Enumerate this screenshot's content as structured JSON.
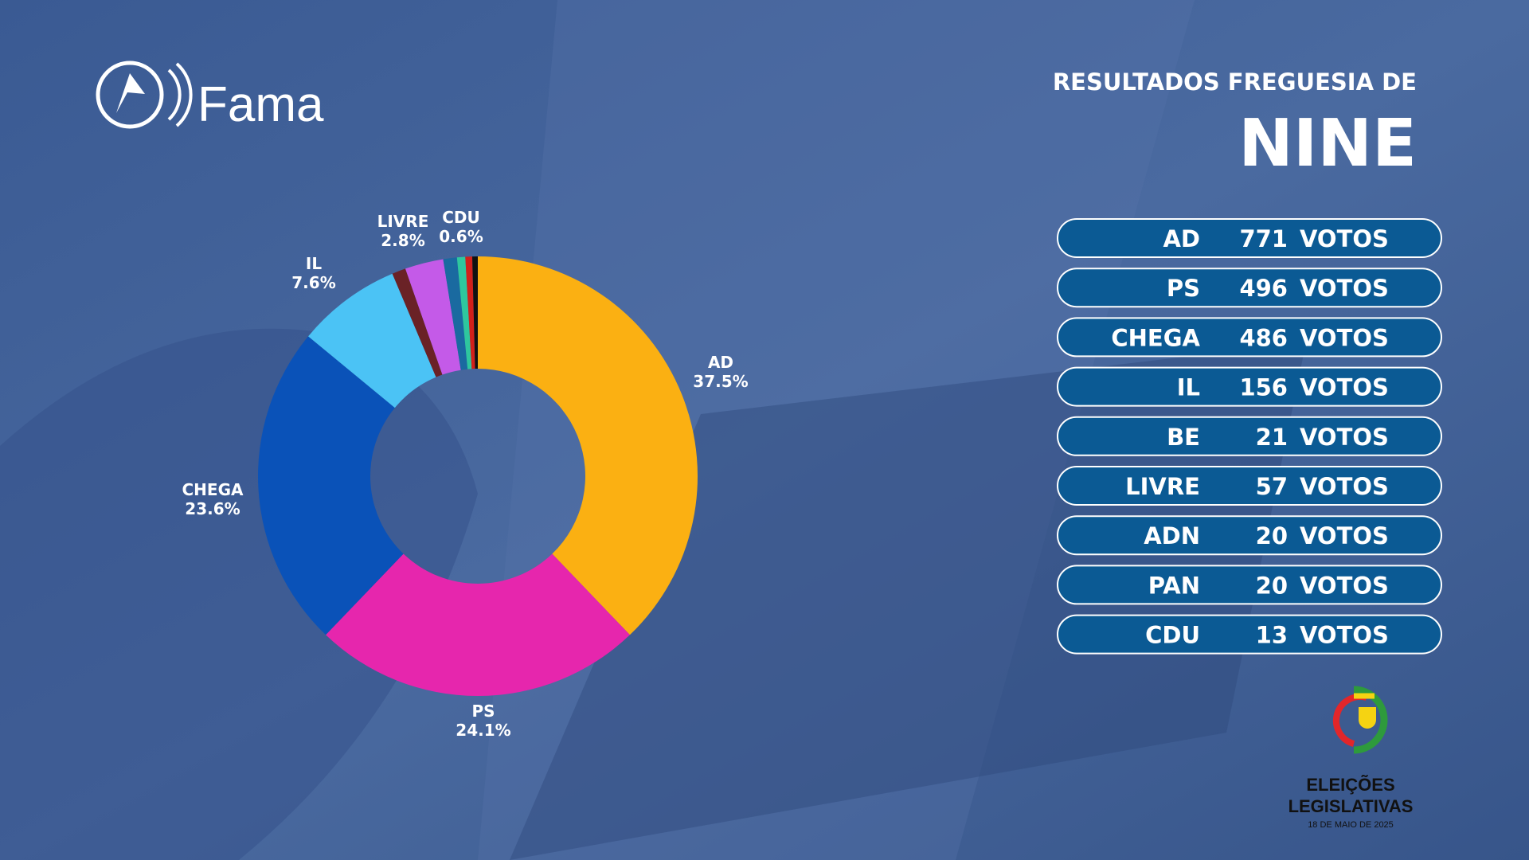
{
  "header": {
    "brand": "Fama",
    "title": "RESULTADOS FREGUESIA DE",
    "place": "NINE"
  },
  "chart_data": {
    "type": "donut",
    "categories": [
      "AD",
      "PS",
      "CHEGA",
      "IL",
      null,
      "LIVRE",
      null,
      "CDU",
      null,
      null
    ],
    "values": [
      37.5,
      24.1,
      23.6,
      7.6,
      1.0,
      2.8,
      1.0,
      0.6,
      0.5,
      0.4
    ],
    "value_labels": [
      "37.5%",
      "24.1%",
      "23.6%",
      "7.6%",
      null,
      "2.8%",
      null,
      "0.6%",
      null,
      null
    ],
    "colors": [
      "#fbb012",
      "#e626ad",
      "#0a52b8",
      "#4bc3f5",
      "#6a2226",
      "#c45ae8",
      "#1a6aa0",
      "#2ec79e",
      "#d2201a",
      "#111111"
    ]
  },
  "results": {
    "unit": "VOTOS",
    "rows": [
      {
        "party": "AD",
        "votes": 771
      },
      {
        "party": "PS",
        "votes": 496
      },
      {
        "party": "CHEGA",
        "votes": 486
      },
      {
        "party": "IL",
        "votes": 156
      },
      {
        "party": "BE",
        "votes": 21
      },
      {
        "party": "LIVRE",
        "votes": 57
      },
      {
        "party": "ADN",
        "votes": 20
      },
      {
        "party": "PAN",
        "votes": 20
      },
      {
        "party": "CDU",
        "votes": 13
      }
    ]
  },
  "footer_logo": {
    "line1": "ELEIÇÕES",
    "line2": "LEGISLATIVAS",
    "date": "18 DE MAIO DE 2025"
  }
}
